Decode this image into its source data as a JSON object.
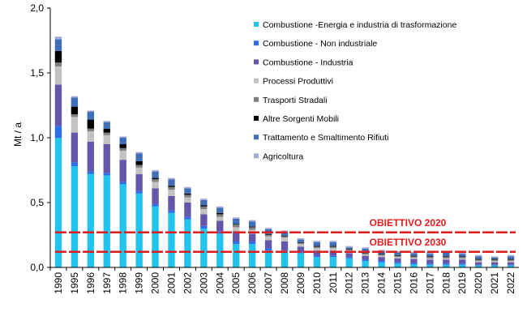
{
  "chart_data": {
    "type": "bar",
    "stacked": true,
    "ylabel": "Mt / a",
    "ylim": [
      0,
      2.0
    ],
    "yticks": [
      "0,0",
      "0,5",
      "1,0",
      "1,5",
      "2,0"
    ],
    "ytick_values": [
      0,
      0.5,
      1.0,
      1.5,
      2.0
    ],
    "grid": false,
    "legend_position": "top-right",
    "categories": [
      "1990",
      "1995",
      "1996",
      "1997",
      "1998",
      "1999",
      "2000",
      "2001",
      "2002",
      "2003",
      "2004",
      "2005",
      "2006",
      "2007",
      "2008",
      "2009",
      "2010",
      "2011",
      "2012",
      "2013",
      "2014",
      "2015",
      "2016",
      "2017",
      "2018",
      "2019",
      "2020",
      "2021",
      "2022"
    ],
    "series": [
      {
        "name": "Combustione -Energia e industria di trasformazione",
        "color": "#22c4ee",
        "values": [
          1.0,
          0.78,
          0.72,
          0.71,
          0.64,
          0.57,
          0.47,
          0.42,
          0.37,
          0.3,
          0.26,
          0.18,
          0.18,
          0.13,
          0.12,
          0.11,
          0.08,
          0.08,
          0.07,
          0.05,
          0.04,
          0.03,
          0.025,
          0.02,
          0.02,
          0.02,
          0.015,
          0.015,
          0.015
        ]
      },
      {
        "name": "Combustione - Non industriale",
        "color": "#2f6ee8",
        "values": [
          0.09,
          0.03,
          0.02,
          0.02,
          0.02,
          0.02,
          0.02,
          0.02,
          0.02,
          0.02,
          0.02,
          0.02,
          0.02,
          0.02,
          0.01,
          0.01,
          0.01,
          0.01,
          0.01,
          0.01,
          0.01,
          0.01,
          0.01,
          0.01,
          0.01,
          0.01,
          0.005,
          0.005,
          0.005
        ]
      },
      {
        "name": "Combustione - Industria",
        "color": "#6456a8",
        "values": [
          0.32,
          0.23,
          0.23,
          0.22,
          0.17,
          0.13,
          0.12,
          0.11,
          0.11,
          0.09,
          0.08,
          0.08,
          0.06,
          0.06,
          0.07,
          0.04,
          0.04,
          0.04,
          0.03,
          0.03,
          0.03,
          0.03,
          0.03,
          0.03,
          0.03,
          0.03,
          0.02,
          0.02,
          0.02
        ]
      },
      {
        "name": "Processi Produttivi",
        "color": "#c2c2c2",
        "values": [
          0.14,
          0.12,
          0.08,
          0.07,
          0.07,
          0.05,
          0.05,
          0.05,
          0.04,
          0.04,
          0.03,
          0.03,
          0.03,
          0.03,
          0.03,
          0.02,
          0.02,
          0.02,
          0.02,
          0.01,
          0.01,
          0.01,
          0.01,
          0.01,
          0.01,
          0.01,
          0.01,
          0.01,
          0.01
        ]
      },
      {
        "name": "Trasporti Stradali",
        "color": "#808080",
        "values": [
          0.03,
          0.02,
          0.02,
          0.02,
          0.02,
          0.02,
          0.02,
          0.02,
          0.02,
          0.02,
          0.02,
          0.02,
          0.02,
          0.01,
          0.01,
          0.01,
          0.01,
          0.01,
          0.01,
          0.01,
          0.01,
          0.01,
          0.01,
          0.01,
          0.01,
          0.01,
          0.01,
          0.01,
          0.01
        ]
      },
      {
        "name": "Altre Sorgenti Mobili",
        "color": "#000000",
        "values": [
          0.09,
          0.06,
          0.07,
          0.03,
          0.03,
          0.03,
          0.01,
          0.01,
          0.01,
          0.01,
          0.01,
          0.005,
          0.005,
          0.005,
          0.005,
          0.005,
          0.005,
          0.005,
          0.005,
          0.005,
          0.005,
          0.005,
          0.005,
          0.005,
          0.005,
          0.005,
          0.005,
          0.005,
          0.005
        ]
      },
      {
        "name": "Trattamento e Smaltimento Rifiuti",
        "color": "#3e6fb8",
        "values": [
          0.09,
          0.07,
          0.06,
          0.05,
          0.05,
          0.06,
          0.05,
          0.05,
          0.04,
          0.04,
          0.04,
          0.04,
          0.04,
          0.04,
          0.03,
          0.02,
          0.03,
          0.03,
          0.01,
          0.03,
          0.02,
          0.02,
          0.02,
          0.02,
          0.03,
          0.02,
          0.02,
          0.01,
          0.02
        ]
      },
      {
        "name": "Agricoltura",
        "color": "#a3a9d8",
        "values": [
          0.02,
          0.01,
          0.01,
          0.01,
          0.01,
          0.01,
          0.01,
          0.01,
          0.01,
          0.01,
          0.01,
          0.01,
          0.01,
          0.01,
          0.01,
          0.01,
          0.01,
          0.01,
          0.01,
          0.01,
          0.01,
          0.01,
          0.01,
          0.01,
          0.01,
          0.01,
          0.01,
          0.01,
          0.01
        ]
      }
    ],
    "targets": [
      {
        "label": "OBIETTIVO 2020",
        "value": 0.27,
        "color": "#e01b1b"
      },
      {
        "label": "OBIETTIVO 2030",
        "value": 0.12,
        "color": "#e01b1b"
      }
    ]
  }
}
